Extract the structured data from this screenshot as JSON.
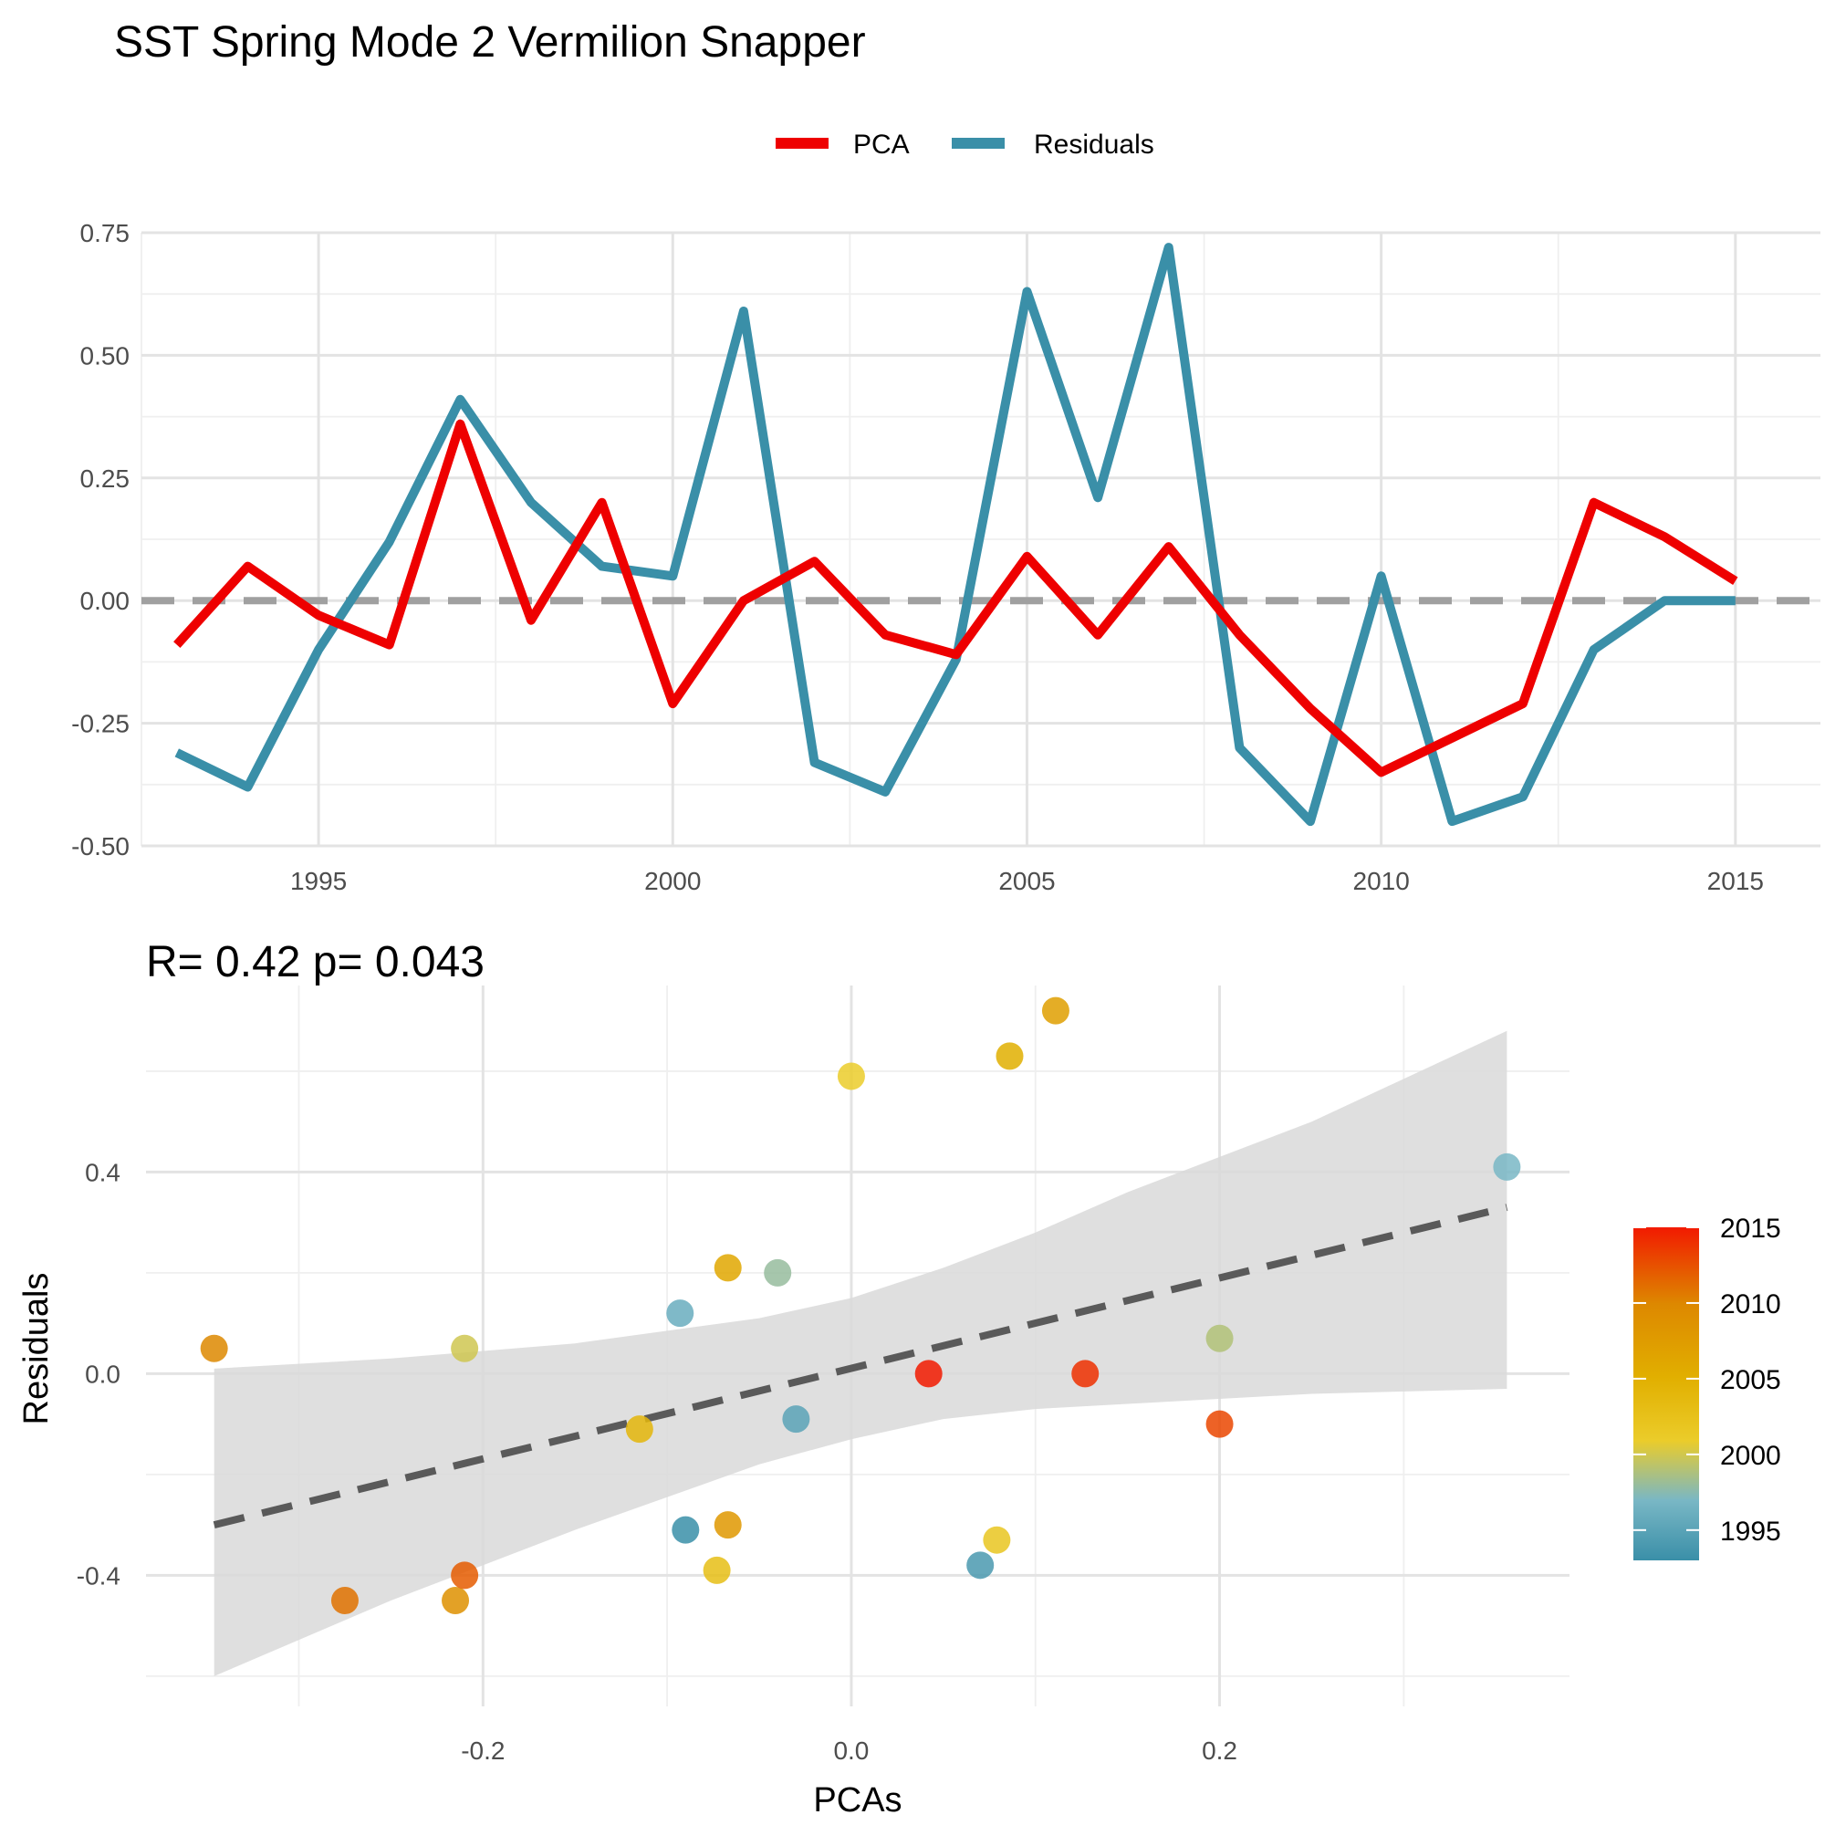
{
  "chart_data": [
    {
      "type": "line",
      "title": "SST Spring Mode 2 Vermilion Snapper",
      "xlabel": "",
      "ylabel": "",
      "xlim": [
        1992.5,
        2016.2
      ],
      "ylim": [
        -0.5,
        0.75
      ],
      "x_ticks": [
        1995,
        2000,
        2005,
        2010,
        2015
      ],
      "y_ticks": [
        -0.5,
        -0.25,
        0.0,
        0.25,
        0.5,
        0.75
      ],
      "y_tick_labels": [
        "-0.50",
        "-0.25",
        "0.00",
        "0.25",
        "0.50",
        "0.75"
      ],
      "x": [
        1993,
        1994,
        1995,
        1996,
        1997,
        1998,
        1999,
        2000,
        2001,
        2002,
        2003,
        2004,
        2005,
        2006,
        2007,
        2008,
        2009,
        2010,
        2011,
        2012,
        2013,
        2014,
        2015
      ],
      "series": [
        {
          "name": "PCA",
          "color": "#ee0000",
          "values": [
            -0.09,
            0.07,
            -0.03,
            -0.09,
            0.36,
            -0.04,
            0.2,
            -0.21,
            0.0,
            0.08,
            -0.07,
            -0.11,
            0.09,
            -0.07,
            0.11,
            -0.07,
            -0.22,
            -0.35,
            -0.28,
            -0.21,
            0.2,
            0.13,
            0.04
          ]
        },
        {
          "name": "Residuals",
          "color": "#3a8fa8",
          "values": [
            -0.31,
            -0.38,
            -0.1,
            0.12,
            0.41,
            0.2,
            0.07,
            0.05,
            0.59,
            -0.33,
            -0.39,
            -0.12,
            0.63,
            0.21,
            0.72,
            -0.3,
            -0.45,
            0.05,
            -0.45,
            -0.4,
            -0.1,
            0.0,
            0.0
          ]
        }
      ],
      "reference_line": {
        "y": 0,
        "style": "dashed",
        "color": "#a0a0a0"
      },
      "legend": {
        "position": "top"
      },
      "grid": true
    },
    {
      "type": "scatter",
      "stats_label": "R= 0.42  p= 0.043",
      "xlabel": "PCAs",
      "ylabel": "Residuals",
      "xlim": [
        -0.383,
        0.39
      ],
      "ylim": [
        -0.66,
        0.77
      ],
      "x_ticks": [
        -0.2,
        0.0,
        0.2
      ],
      "x_tick_labels": [
        "-0.2",
        "0.0",
        "0.2"
      ],
      "y_ticks": [
        -0.4,
        0.0,
        0.4
      ],
      "y_tick_labels": [
        "-0.4",
        "0.0",
        "0.4"
      ],
      "points": [
        {
          "x": -0.09,
          "y": -0.31,
          "year": 1993
        },
        {
          "x": 0.07,
          "y": -0.38,
          "year": 1994
        },
        {
          "x": -0.03,
          "y": -0.09,
          "year": 1995
        },
        {
          "x": -0.093,
          "y": 0.12,
          "year": 1996
        },
        {
          "x": 0.356,
          "y": 0.41,
          "year": 1997
        },
        {
          "x": -0.04,
          "y": 0.2,
          "year": 1998
        },
        {
          "x": 0.2,
          "y": 0.07,
          "year": 1999
        },
        {
          "x": -0.21,
          "y": 0.05,
          "year": 2000
        },
        {
          "x": 0.0,
          "y": 0.59,
          "year": 2001
        },
        {
          "x": 0.079,
          "y": -0.33,
          "year": 2002
        },
        {
          "x": -0.073,
          "y": -0.39,
          "year": 2003
        },
        {
          "x": -0.115,
          "y": -0.11,
          "year": 2004
        },
        {
          "x": 0.086,
          "y": 0.63,
          "year": 2005
        },
        {
          "x": -0.067,
          "y": 0.21,
          "year": 2006
        },
        {
          "x": 0.111,
          "y": 0.72,
          "year": 2007
        },
        {
          "x": -0.067,
          "y": -0.3,
          "year": 2008
        },
        {
          "x": -0.215,
          "y": -0.45,
          "year": 2009
        },
        {
          "x": -0.346,
          "y": 0.05,
          "year": 2010
        },
        {
          "x": -0.275,
          "y": -0.45,
          "year": 2011
        },
        {
          "x": -0.21,
          "y": -0.4,
          "year": 2012
        },
        {
          "x": 0.2,
          "y": -0.1,
          "year": 2013
        },
        {
          "x": 0.127,
          "y": 0.0,
          "year": 2014
        },
        {
          "x": 0.042,
          "y": 0.0,
          "year": 2015
        }
      ],
      "regression": {
        "style": "dashed",
        "color": "#5a5a5a",
        "x": [
          -0.346,
          0.356
        ],
        "y": [
          -0.3,
          0.33
        ]
      },
      "confidence_band": {
        "color": "#dedede",
        "x": [
          -0.346,
          -0.25,
          -0.15,
          -0.05,
          0.0,
          0.05,
          0.1,
          0.15,
          0.25,
          0.356
        ],
        "upper": [
          0.01,
          0.03,
          0.06,
          0.11,
          0.15,
          0.21,
          0.28,
          0.36,
          0.5,
          0.68
        ],
        "lower": [
          -0.6,
          -0.45,
          -0.31,
          -0.18,
          -0.13,
          -0.09,
          -0.07,
          -0.06,
          -0.04,
          -0.03
        ]
      },
      "colorbar": {
        "labels": [
          "2015",
          "2010",
          "2005",
          "2000",
          "1995"
        ],
        "values": [
          2015,
          2010,
          2005,
          2000,
          1995
        ],
        "range": [
          1993,
          2015
        ],
        "stops": [
          {
            "year": 1993,
            "color": "#3a8fa8"
          },
          {
            "year": 1997,
            "color": "#79b7c5"
          },
          {
            "year": 2001,
            "color": "#ebcc2a"
          },
          {
            "year": 2005,
            "color": "#e1af00"
          },
          {
            "year": 2010,
            "color": "#dd8800"
          },
          {
            "year": 2015,
            "color": "#f21a00"
          }
        ]
      },
      "grid": true
    }
  ]
}
